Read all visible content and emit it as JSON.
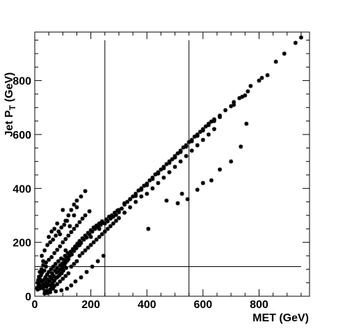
{
  "chart_data": {
    "type": "scatter",
    "title": "",
    "xlabel": "MET (GeV)",
    "ylabel": {
      "main": "Jet P",
      "sub": "T",
      "unit": " (GeV)"
    },
    "xlim": [
      0,
      980
    ],
    "ylim": [
      0,
      980
    ],
    "xticks": [
      0,
      200,
      400,
      600,
      800
    ],
    "yticks": [
      0,
      200,
      400,
      600,
      800
    ],
    "grid": false,
    "legend": "none",
    "marker_color": "#000000",
    "cut_lines": {
      "vertical": [
        250,
        550
      ],
      "horizontal": [
        110
      ]
    },
    "points": [
      [
        20,
        40
      ],
      [
        25,
        55
      ],
      [
        28,
        30
      ],
      [
        30,
        45
      ],
      [
        32,
        60
      ],
      [
        35,
        38
      ],
      [
        38,
        70
      ],
      [
        40,
        50
      ],
      [
        42,
        35
      ],
      [
        44,
        80
      ],
      [
        46,
        62
      ],
      [
        48,
        42
      ],
      [
        50,
        90
      ],
      [
        52,
        55
      ],
      [
        55,
        72
      ],
      [
        57,
        40
      ],
      [
        58,
        100
      ],
      [
        60,
        65
      ],
      [
        62,
        85
      ],
      [
        64,
        50
      ],
      [
        66,
        110
      ],
      [
        68,
        75
      ],
      [
        70,
        58
      ],
      [
        72,
        95
      ],
      [
        74,
        120
      ],
      [
        76,
        68
      ],
      [
        78,
        88
      ],
      [
        80,
        105
      ],
      [
        82,
        72
      ],
      [
        84,
        130
      ],
      [
        86,
        92
      ],
      [
        88,
        78
      ],
      [
        90,
        115
      ],
      [
        92,
        100
      ],
      [
        94,
        140
      ],
      [
        96,
        85
      ],
      [
        98,
        122
      ],
      [
        100,
        108
      ],
      [
        102,
        95
      ],
      [
        104,
        135
      ],
      [
        106,
        118
      ],
      [
        108,
        150
      ],
      [
        110,
        125
      ],
      [
        112,
        105
      ],
      [
        114,
        145
      ],
      [
        116,
        132
      ],
      [
        118,
        160
      ],
      [
        120,
        138
      ],
      [
        124,
        150
      ],
      [
        128,
        165
      ],
      [
        132,
        155
      ],
      [
        136,
        175
      ],
      [
        140,
        168
      ],
      [
        144,
        185
      ],
      [
        148,
        178
      ],
      [
        152,
        195
      ],
      [
        156,
        188
      ],
      [
        160,
        205
      ],
      [
        165,
        198
      ],
      [
        170,
        215
      ],
      [
        175,
        210
      ],
      [
        180,
        225
      ],
      [
        185,
        218
      ],
      [
        190,
        235
      ],
      [
        195,
        230
      ],
      [
        200,
        245
      ],
      [
        205,
        240
      ],
      [
        210,
        255
      ],
      [
        215,
        250
      ],
      [
        220,
        262
      ],
      [
        225,
        258
      ],
      [
        230,
        270
      ],
      [
        235,
        265
      ],
      [
        240,
        278
      ],
      [
        245,
        272
      ],
      [
        255,
        285
      ],
      [
        260,
        278
      ],
      [
        265,
        295
      ],
      [
        270,
        288
      ],
      [
        275,
        300
      ],
      [
        280,
        295
      ],
      [
        285,
        310
      ],
      [
        290,
        302
      ],
      [
        295,
        318
      ],
      [
        300,
        312
      ],
      [
        310,
        325
      ],
      [
        320,
        340
      ],
      [
        330,
        350
      ],
      [
        340,
        360
      ],
      [
        350,
        370
      ],
      [
        360,
        380
      ],
      [
        370,
        392
      ],
      [
        380,
        400
      ],
      [
        390,
        410
      ],
      [
        400,
        418
      ],
      [
        410,
        430
      ],
      [
        420,
        440
      ],
      [
        430,
        452
      ],
      [
        440,
        460
      ],
      [
        450,
        470
      ],
      [
        460,
        480
      ],
      [
        470,
        490
      ],
      [
        480,
        500
      ],
      [
        490,
        508
      ],
      [
        500,
        520
      ],
      [
        510,
        530
      ],
      [
        520,
        540
      ],
      [
        530,
        552
      ],
      [
        540,
        560
      ],
      [
        550,
        572
      ],
      [
        560,
        580
      ],
      [
        570,
        592
      ],
      [
        580,
        600
      ],
      [
        590,
        610
      ],
      [
        600,
        620
      ],
      [
        610,
        630
      ],
      [
        620,
        640
      ],
      [
        630,
        648
      ],
      [
        640,
        656
      ],
      [
        660,
        670
      ],
      [
        700,
        705
      ],
      [
        710,
        720
      ],
      [
        740,
        740
      ],
      [
        760,
        760
      ],
      [
        800,
        800
      ],
      [
        810,
        810
      ],
      [
        830,
        820
      ],
      [
        860,
        870
      ],
      [
        890,
        900
      ],
      [
        930,
        940
      ],
      [
        950,
        960
      ],
      [
        10,
        25
      ],
      [
        12,
        35
      ],
      [
        14,
        48
      ],
      [
        16,
        28
      ],
      [
        18,
        65
      ],
      [
        22,
        78
      ],
      [
        26,
        88
      ],
      [
        34,
        95
      ],
      [
        36,
        20
      ],
      [
        12,
        60
      ],
      [
        15,
        72
      ],
      [
        8,
        30
      ],
      [
        10,
        50
      ],
      [
        18,
        90
      ],
      [
        24,
        100
      ],
      [
        30,
        115
      ],
      [
        40,
        125
      ],
      [
        50,
        135
      ],
      [
        60,
        145
      ],
      [
        70,
        160
      ],
      [
        80,
        172
      ],
      [
        90,
        185
      ],
      [
        100,
        200
      ],
      [
        110,
        212
      ],
      [
        120,
        225
      ],
      [
        130,
        238
      ],
      [
        140,
        250
      ],
      [
        150,
        262
      ],
      [
        160,
        275
      ],
      [
        170,
        288
      ],
      [
        180,
        300
      ],
      [
        195,
        315
      ],
      [
        80,
        45
      ],
      [
        90,
        55
      ],
      [
        100,
        65
      ],
      [
        110,
        75
      ],
      [
        120,
        85
      ],
      [
        60,
        30
      ],
      [
        70,
        38
      ],
      [
        45,
        20
      ],
      [
        55,
        25
      ],
      [
        65,
        28
      ],
      [
        130,
        110
      ],
      [
        140,
        120
      ],
      [
        150,
        130
      ],
      [
        160,
        150
      ],
      [
        170,
        160
      ],
      [
        180,
        170
      ],
      [
        190,
        180
      ],
      [
        200,
        190
      ],
      [
        210,
        200
      ],
      [
        220,
        210
      ],
      [
        230,
        220
      ],
      [
        240,
        230
      ],
      [
        250,
        240
      ],
      [
        260,
        250
      ],
      [
        270,
        260
      ],
      [
        280,
        270
      ],
      [
        290,
        280
      ],
      [
        300,
        290
      ],
      [
        320,
        310
      ],
      [
        340,
        330
      ],
      [
        360,
        350
      ],
      [
        380,
        370
      ],
      [
        400,
        380
      ],
      [
        420,
        400
      ],
      [
        440,
        420
      ],
      [
        460,
        440
      ],
      [
        480,
        460
      ],
      [
        500,
        480
      ],
      [
        520,
        500
      ],
      [
        540,
        520
      ],
      [
        560,
        540
      ],
      [
        580,
        560
      ],
      [
        600,
        580
      ],
      [
        620,
        600
      ],
      [
        640,
        620
      ],
      [
        110,
        280
      ],
      [
        125,
        260
      ],
      [
        140,
        300
      ],
      [
        150,
        330
      ],
      [
        100,
        320
      ],
      [
        80,
        270
      ],
      [
        70,
        250
      ],
      [
        60,
        240
      ],
      [
        50,
        220
      ],
      [
        90,
        230
      ],
      [
        110,
        170
      ],
      [
        160,
        190
      ],
      [
        200,
        220
      ],
      [
        230,
        250
      ],
      [
        250,
        270
      ],
      [
        270,
        290
      ],
      [
        300,
        320
      ],
      [
        320,
        345
      ],
      [
        340,
        360
      ],
      [
        360,
        372
      ],
      [
        380,
        395
      ],
      [
        400,
        412
      ],
      [
        420,
        435
      ],
      [
        440,
        455
      ],
      [
        460,
        475
      ],
      [
        480,
        495
      ],
      [
        500,
        515
      ],
      [
        520,
        535
      ],
      [
        540,
        555
      ],
      [
        560,
        575
      ],
      [
        580,
        595
      ],
      [
        600,
        615
      ],
      [
        620,
        635
      ],
      [
        640,
        650
      ],
      [
        660,
        665
      ],
      [
        680,
        690
      ],
      [
        710,
        710
      ],
      [
        730,
        735
      ],
      [
        750,
        745
      ],
      [
        770,
        780
      ],
      [
        405,
        250
      ],
      [
        470,
        355
      ],
      [
        510,
        345
      ],
      [
        525,
        380
      ],
      [
        545,
        360
      ],
      [
        580,
        395
      ],
      [
        600,
        420
      ],
      [
        630,
        430
      ],
      [
        660,
        470
      ],
      [
        700,
        500
      ],
      [
        735,
        555
      ],
      [
        755,
        640
      ],
      [
        35,
        10
      ],
      [
        45,
        12
      ],
      [
        55,
        15
      ],
      [
        75,
        18
      ],
      [
        95,
        22
      ],
      [
        115,
        28
      ],
      [
        130,
        40
      ],
      [
        145,
        55
      ],
      [
        165,
        70
      ],
      [
        185,
        90
      ],
      [
        205,
        110
      ],
      [
        225,
        130
      ],
      [
        245,
        150
      ],
      [
        40,
        110
      ],
      [
        30,
        130
      ],
      [
        25,
        150
      ],
      [
        35,
        170
      ],
      [
        45,
        190
      ],
      [
        55,
        200
      ],
      [
        65,
        210
      ],
      [
        75,
        225
      ],
      [
        85,
        240
      ],
      [
        95,
        255
      ],
      [
        105,
        265
      ],
      [
        115,
        280
      ],
      [
        120,
        300
      ],
      [
        130,
        320
      ],
      [
        140,
        340
      ],
      [
        150,
        355
      ],
      [
        165,
        370
      ],
      [
        180,
        390
      ]
    ]
  }
}
